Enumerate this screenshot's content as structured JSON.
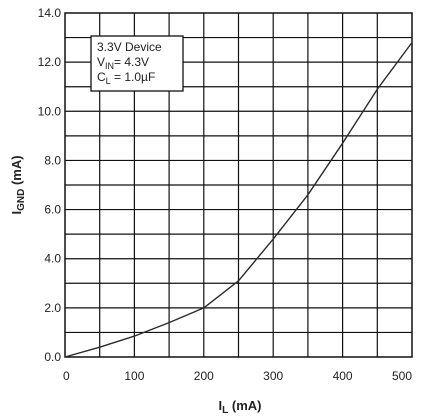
{
  "chart_data": {
    "type": "line",
    "title": "",
    "xlabel": {
      "main": "I",
      "sub": "L",
      "unit": " (mA)"
    },
    "ylabel": {
      "main": "I",
      "sub": "GND",
      "unit": " (mA)"
    },
    "xlim": [
      0,
      500
    ],
    "ylim": [
      0,
      14
    ],
    "xticks": [
      0,
      100,
      200,
      300,
      400,
      500
    ],
    "xtick_labels": [
      "0",
      "100",
      "200",
      "300",
      "400",
      "500"
    ],
    "yticks": [
      0,
      2,
      4,
      6,
      8,
      10,
      12,
      14
    ],
    "ytick_labels": [
      "0.0",
      "2.0",
      "4.0",
      "6.0",
      "8.0",
      "10.0",
      "12.0",
      "14.0"
    ],
    "grid": true,
    "x_grid_step": 50,
    "y_grid_step": 1,
    "annotation": {
      "line1": "3.3V Device",
      "line2": {
        "main": "V",
        "sub": "IN",
        "rest": "= 4.3V"
      },
      "line3": {
        "main": "C",
        "sub": "L",
        "rest": " = 1.0µF"
      }
    },
    "series": [
      {
        "x": [
          0,
          50,
          100,
          150,
          200,
          250,
          300,
          350,
          400,
          450,
          500
        ],
        "y": [
          0,
          0.4,
          0.85,
          1.4,
          2.0,
          3.1,
          4.8,
          6.6,
          8.7,
          10.9,
          12.8
        ]
      }
    ],
    "colors": {
      "line": "#2b2b2b",
      "grid": "#111111",
      "text": "#222222"
    }
  }
}
